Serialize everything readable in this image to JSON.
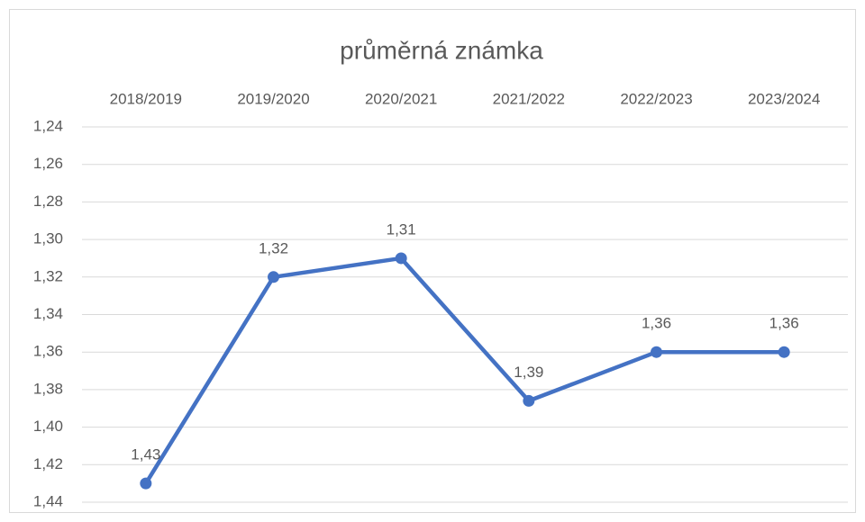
{
  "chart_data": {
    "type": "line",
    "title": "průměrná známka",
    "categories": [
      "2018/2019",
      "2019/2020",
      "2020/2021",
      "2021/2022",
      "2022/2023",
      "2023/2024"
    ],
    "series": [
      {
        "name": "průměrná známka",
        "color": "#4472c4",
        "values": [
          1.43,
          1.32,
          1.31,
          1.386,
          1.36,
          1.36
        ],
        "value_labels": [
          "1,43",
          "1,32",
          "1,31",
          "1,39",
          "1,36",
          "1,36"
        ]
      }
    ],
    "ylim": [
      1.24,
      1.44
    ],
    "yreverse": true,
    "yticks": [
      {
        "value": 1.24,
        "label": "1,24"
      },
      {
        "value": 1.26,
        "label": "1,26"
      },
      {
        "value": 1.28,
        "label": "1,28"
      },
      {
        "value": 1.3,
        "label": "1,30"
      },
      {
        "value": 1.32,
        "label": "1,32"
      },
      {
        "value": 1.34,
        "label": "1,34"
      },
      {
        "value": 1.36,
        "label": "1,36"
      },
      {
        "value": 1.38,
        "label": "1,38"
      },
      {
        "value": 1.4,
        "label": "1,40"
      },
      {
        "value": 1.42,
        "label": "1,42"
      },
      {
        "value": 1.44,
        "label": "1,44"
      }
    ],
    "grid": true
  }
}
